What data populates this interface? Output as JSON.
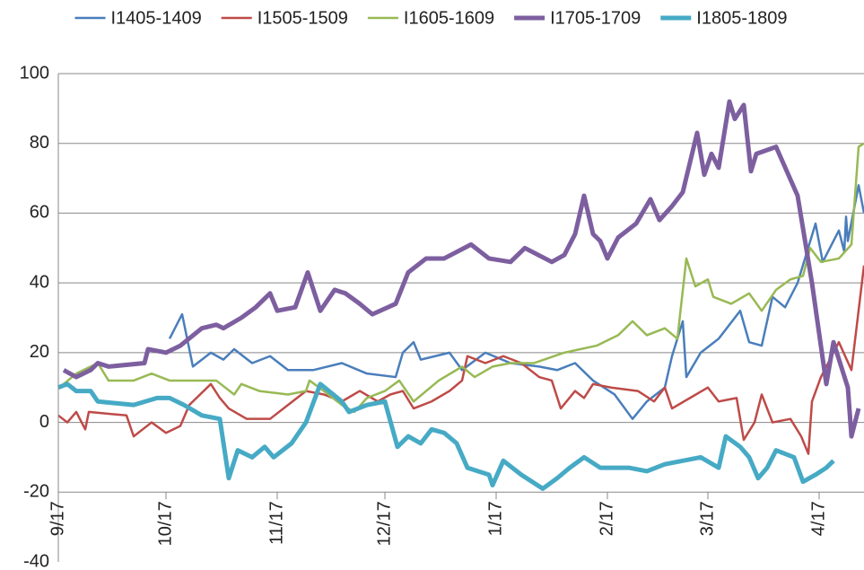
{
  "chart_data": {
    "type": "line",
    "xlim": [
      0,
      224.5
    ],
    "ylim": [
      -40,
      100
    ],
    "xticks": [
      {
        "value": 0,
        "label": "9/17"
      },
      {
        "value": 30,
        "label": "10/17"
      },
      {
        "value": 61,
        "label": "11/17"
      },
      {
        "value": 91,
        "label": "12/17"
      },
      {
        "value": 122,
        "label": "1/17"
      },
      {
        "value": 153,
        "label": "2/17"
      },
      {
        "value": 181,
        "label": "3/17"
      },
      {
        "value": 212,
        "label": "4/17"
      }
    ],
    "yticks": [
      -40,
      -20,
      0,
      20,
      40,
      60,
      80,
      100
    ],
    "grid": true,
    "legend": "top",
    "series": [
      {
        "name": "I1405-1409",
        "color": "#4a7ebb",
        "line_width": 2.5,
        "x": [
          31,
          34.5,
          37.5,
          42.5,
          46,
          49,
          54,
          59,
          64,
          71,
          79,
          86,
          94,
          96,
          99,
          101,
          109,
          112.5,
          119,
          126,
          134,
          139,
          144,
          149,
          155,
          160,
          164,
          169,
          171,
          174,
          175,
          179,
          184,
          190,
          192.5,
          196,
          199,
          202.5,
          206,
          211,
          213,
          217.5,
          219,
          219.5,
          220,
          223,
          224.5
        ],
        "values": [
          24,
          31,
          16,
          20,
          18,
          21,
          17,
          19,
          15,
          15,
          17,
          14,
          13,
          20,
          23,
          18,
          20,
          15,
          20,
          17,
          16,
          15,
          17,
          12,
          8,
          1,
          6,
          10,
          19,
          29,
          13,
          20,
          24,
          32,
          23,
          22,
          36,
          33,
          40,
          57,
          46,
          55,
          49,
          59,
          52,
          68,
          60
        ]
      },
      {
        "name": "I1505-1509",
        "color": "#be4b48",
        "line_width": 2.5,
        "x": [
          0,
          2.5,
          5,
          7.5,
          8.5,
          19,
          21,
          26,
          30,
          34,
          36.5,
          42.5,
          45,
          47.5,
          52.5,
          59,
          64,
          69,
          74,
          79,
          84,
          89,
          92.5,
          96,
          99,
          104,
          109,
          112.5,
          114,
          119,
          124,
          129,
          134,
          137.5,
          140,
          144,
          146.5,
          149,
          154,
          161.5,
          166,
          169,
          171,
          176,
          181,
          184,
          189,
          191,
          194,
          196,
          199,
          204,
          207,
          209,
          210,
          212.5,
          217.5,
          221,
          224.5
        ],
        "values": [
          2,
          0,
          3,
          -2,
          3,
          2,
          -4,
          0,
          -3,
          -1,
          5,
          11,
          7,
          4,
          1,
          1,
          5,
          9,
          8,
          6,
          9,
          6,
          8,
          9,
          4,
          6,
          9,
          12,
          19,
          17,
          19,
          17,
          13,
          12,
          4,
          9,
          7,
          11,
          10,
          9,
          6,
          10,
          4,
          7,
          10,
          6,
          7,
          -5,
          0,
          8,
          0,
          1,
          -4,
          -9,
          6,
          13,
          23,
          15,
          45
        ]
      },
      {
        "name": "I1605-1609",
        "color": "#98b954",
        "line_width": 2.5,
        "x": [
          0,
          1.5,
          5,
          11,
          14,
          21,
          26,
          31,
          39,
          44,
          49,
          51,
          56,
          64,
          69,
          70,
          74,
          79,
          82.5,
          86,
          91,
          95,
          99,
          106,
          112.5,
          116,
          121,
          126,
          132.5,
          141,
          150,
          156,
          160,
          164,
          169,
          172.5,
          175,
          177.5,
          181,
          182.5,
          187.5,
          192.5,
          196,
          200,
          204,
          207.5,
          209.5,
          212.5,
          217.5,
          221,
          223,
          224.5
        ],
        "values": [
          10,
          11,
          14,
          17,
          12,
          12,
          14,
          12,
          12,
          12,
          8,
          11,
          9,
          8,
          9,
          12,
          9,
          5,
          3,
          7,
          9,
          12,
          6,
          12,
          16,
          13,
          16,
          17,
          17,
          20,
          22,
          25,
          29,
          25,
          27,
          24,
          47,
          39,
          41,
          36,
          34,
          37,
          32,
          38,
          41,
          42,
          50,
          46,
          47,
          51,
          79,
          80
        ]
      },
      {
        "name": "I1705-1709",
        "color": "#7d5fa0",
        "line_width": 5,
        "x": [
          1.5,
          5,
          9,
          11,
          14,
          24,
          25,
          30,
          34,
          40,
          44,
          46,
          51,
          55,
          59,
          61,
          66,
          69.5,
          73,
          77,
          80,
          84,
          87.5,
          94,
          97.5,
          102.5,
          107.5,
          115,
          120,
          126,
          130,
          137.5,
          141,
          144,
          146.5,
          149,
          151,
          153,
          156,
          161,
          165,
          167.5,
          171,
          174,
          178,
          180,
          182,
          184,
          187,
          188.5,
          191,
          193,
          194.5,
          200,
          206,
          210,
          214,
          216,
          220,
          221,
          223
        ],
        "values": [
          15,
          13,
          15,
          17,
          16,
          17,
          21,
          20,
          22,
          27,
          28,
          27,
          30,
          33,
          37,
          32,
          33,
          43,
          32,
          38,
          37,
          34,
          31,
          34,
          43,
          47,
          47,
          51,
          47,
          46,
          50,
          46,
          48,
          54,
          65,
          54,
          52,
          47,
          53,
          57,
          64,
          58,
          62,
          66,
          83,
          71,
          77,
          73,
          92,
          87,
          91,
          72,
          77,
          79,
          65,
          40,
          11,
          23,
          10,
          -4,
          4
        ]
      },
      {
        "name": "I1805-1809",
        "color": "#46aac5",
        "line_width": 5,
        "x": [
          0,
          2.5,
          5,
          9,
          11,
          21,
          27.5,
          31,
          35,
          40,
          45,
          47.5,
          50,
          54,
          57.5,
          60,
          65,
          69,
          73,
          79,
          81,
          86,
          91,
          94.5,
          97.5,
          101,
          104,
          107.5,
          111,
          114,
          120,
          121,
          124,
          129,
          135,
          139,
          142.5,
          146.5,
          151,
          159,
          164,
          169,
          174,
          179,
          184,
          186,
          190,
          192.5,
          195,
          197.5,
          200,
          205,
          207.5,
          211,
          214,
          216
        ],
        "values": [
          10,
          11,
          9,
          9,
          6,
          5,
          7,
          7,
          5,
          2,
          1,
          -16,
          -8,
          -10,
          -7,
          -10,
          -6,
          0,
          11,
          6,
          3,
          5,
          6,
          -7,
          -4,
          -6,
          -2,
          -3,
          -6,
          -13,
          -15,
          -18,
          -11,
          -15,
          -19,
          -16,
          -13,
          -10,
          -13,
          -13,
          -14,
          -12,
          -11,
          -10,
          -13,
          -4,
          -7,
          -10,
          -16,
          -13,
          -8,
          -10,
          -17,
          -15,
          -13,
          -11
        ]
      }
    ]
  }
}
